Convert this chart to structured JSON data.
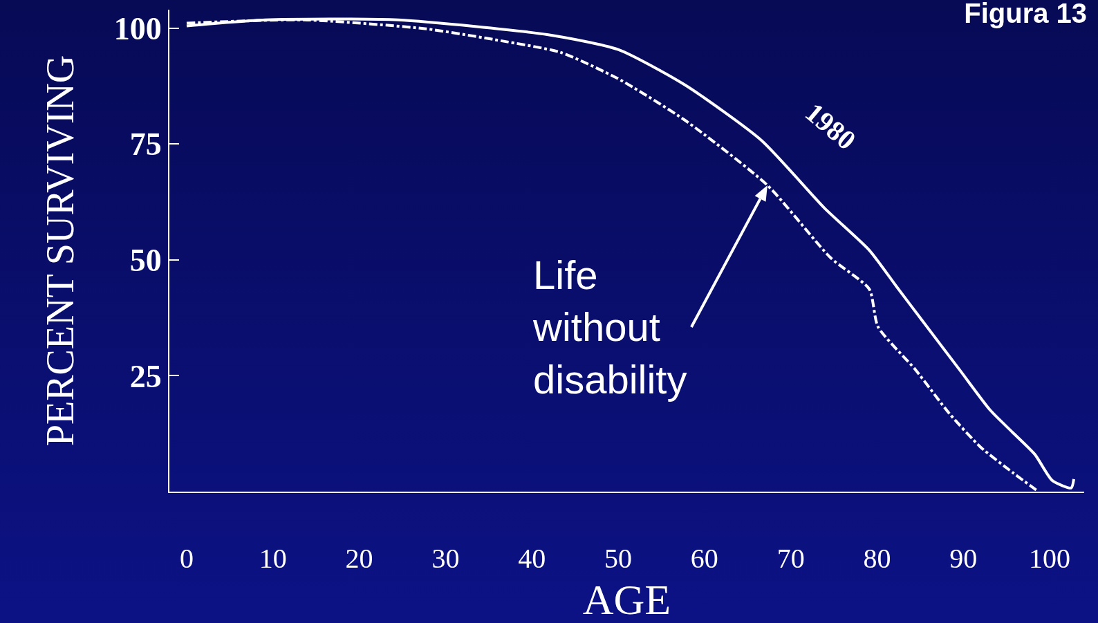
{
  "chart_data": {
    "type": "line",
    "title": "Figura 13",
    "xlabel": "AGE",
    "ylabel": "PERCENT SURVIVING",
    "xlim": [
      -2,
      104
    ],
    "ylim": [
      0,
      104
    ],
    "xticks": [
      0,
      10,
      20,
      30,
      40,
      50,
      60,
      70,
      80,
      90,
      100
    ],
    "yticks": [
      25,
      50,
      75,
      100
    ],
    "grid": false,
    "legend": false,
    "marker": "none",
    "series": [
      {
        "name": "1980",
        "color": "#ffffff",
        "line_style": "solid",
        "x": [
          0,
          9.1,
          24.5,
          41.9,
          50,
          57.7,
          66.6,
          73.9,
          79.1,
          82.2,
          85.2,
          89.6,
          93.1,
          95.7,
          98.3,
          100.3,
          102.5,
          102.8
        ],
        "values": [
          100.5,
          101.8,
          101.8,
          98.6,
          95.4,
          87.8,
          75.8,
          61.2,
          52.1,
          44.4,
          37.0,
          26.2,
          17.6,
          12.8,
          8.0,
          2.4,
          0.8,
          2.7
        ]
      },
      {
        "color": "#ffffff",
        "line_style": "dashed",
        "x": [
          0,
          13.6,
          27.6,
          36.4,
          43.3,
          50,
          57.7,
          67.3,
          74.6,
          79.1,
          80.1,
          84.5,
          88.4,
          92.0,
          95.8,
          98.7
        ],
        "values": [
          101.1,
          101.8,
          99.9,
          97.3,
          94.8,
          89.1,
          80.2,
          66.1,
          50.5,
          43.7,
          35.6,
          26.2,
          16.8,
          9.6,
          4.0,
          0
        ]
      }
    ],
    "annotations": [
      {
        "text": "Life\nwithout\ndisability",
        "x": 67.3,
        "y": 66.1
      }
    ]
  }
}
